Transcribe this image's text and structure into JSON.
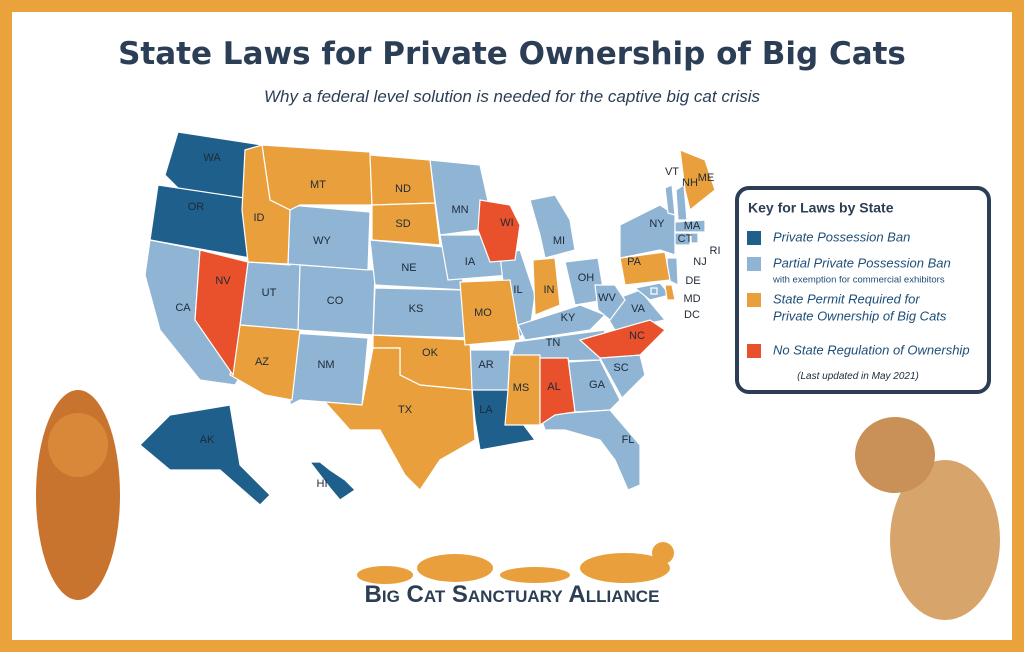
{
  "header": {
    "title": "State Laws for Private Ownership of Big Cats",
    "subtitle": "Why a federal level solution is needed for the captive big cat crisis"
  },
  "legend": {
    "title": "Key for Laws by State",
    "items": [
      {
        "lines": [
          "Private Possession Ban"
        ],
        "color": "#1f5f8b",
        "states": [
          "WA",
          "OR",
          "LA",
          "AK",
          "HI"
        ]
      },
      {
        "lines": [
          "Partial Private Possession Ban"
        ],
        "note": "with exemption for commercial exhibitors",
        "color": "#8fb4d4",
        "states": [
          "CA",
          "UT",
          "CO",
          "WY",
          "NE",
          "KS",
          "NM",
          "MN",
          "IA",
          "AR",
          "IL",
          "MI",
          "OH",
          "KY",
          "TN",
          "GA",
          "SC",
          "FL",
          "VA",
          "WV",
          "NY",
          "VT",
          "NH",
          "MA",
          "CT",
          "RI",
          "NJ",
          "MD",
          "DC"
        ]
      },
      {
        "lines": [
          "State Permit Required for",
          "Private Ownership of Big Cats"
        ],
        "color": "#e9a03c",
        "states": [
          "MT",
          "ND",
          "SD",
          "ID",
          "AZ",
          "OK",
          "TX",
          "MO",
          "IN",
          "MS",
          "PA",
          "ME",
          "DE"
        ]
      },
      {
        "lines": [
          "No State Regulation of Ownership"
        ],
        "color": "#e8512b",
        "states": [
          "NV",
          "WI",
          "AL",
          "NC"
        ]
      }
    ],
    "updated": "(Last updated in May 2021)"
  },
  "footer": {
    "logo": "Big Cat Sanctuary Alliance"
  }
}
